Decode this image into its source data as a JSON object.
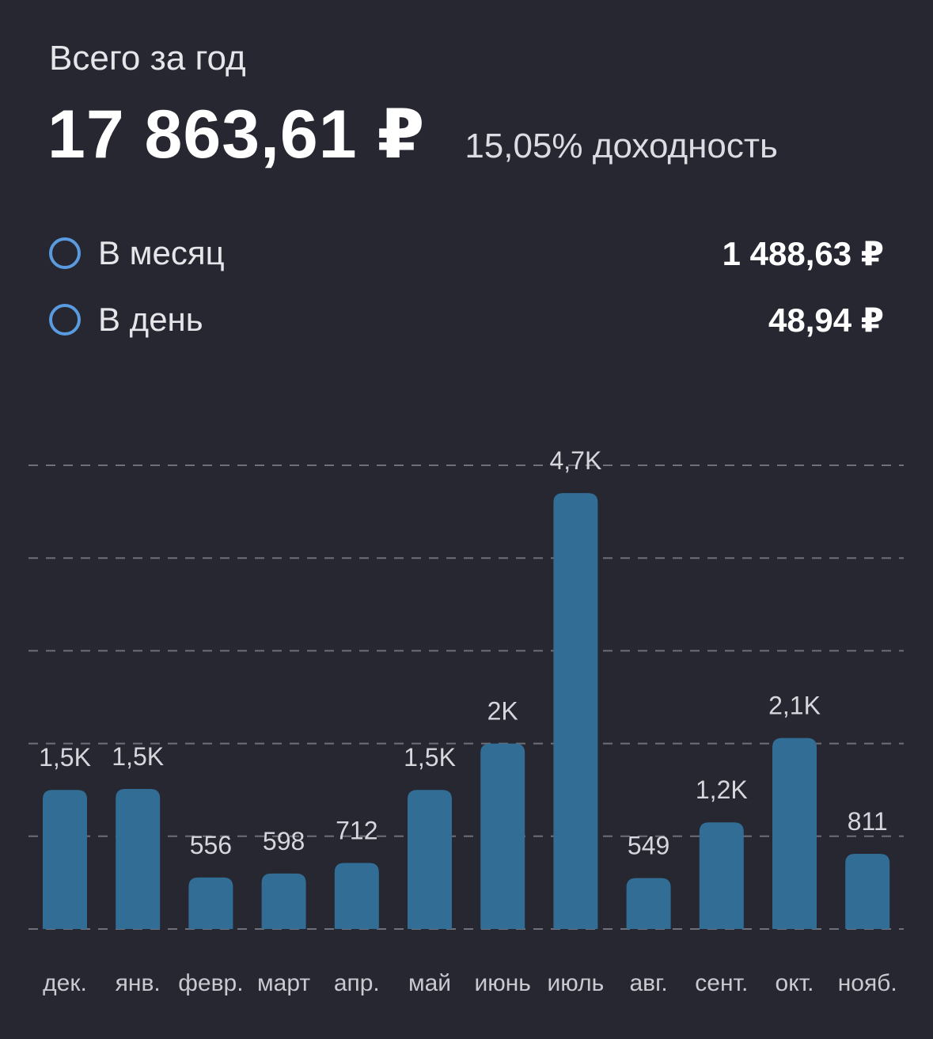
{
  "header": {
    "title": "Всего за год",
    "total": "17 863,61 ₽",
    "yield": "15,05% доходность"
  },
  "stats": [
    {
      "label": "В месяц",
      "value": "1 488,63 ₽"
    },
    {
      "label": "В день",
      "value": "48,94 ₽"
    }
  ],
  "colors": {
    "background": "#262730",
    "bar": "#326d96",
    "ring": "#5a9be0",
    "grid": "#6e6f78"
  },
  "chart_data": {
    "type": "bar",
    "categories": [
      "дек.",
      "янв.",
      "февр.",
      "март",
      "апр.",
      "май",
      "июнь",
      "июль",
      "авг.",
      "сент.",
      "окт.",
      "нояб."
    ],
    "values": [
      1500,
      1510,
      556,
      598,
      712,
      1500,
      2000,
      4700,
      549,
      1150,
      2060,
      811
    ],
    "data_labels": [
      "1,5K",
      "1,5K",
      "556",
      "598",
      "712",
      "1,5K",
      "2K",
      "4,7K",
      "549",
      "1,2K",
      "2,1K",
      "811"
    ],
    "ylim": [
      0,
      5000
    ],
    "grid": true
  }
}
